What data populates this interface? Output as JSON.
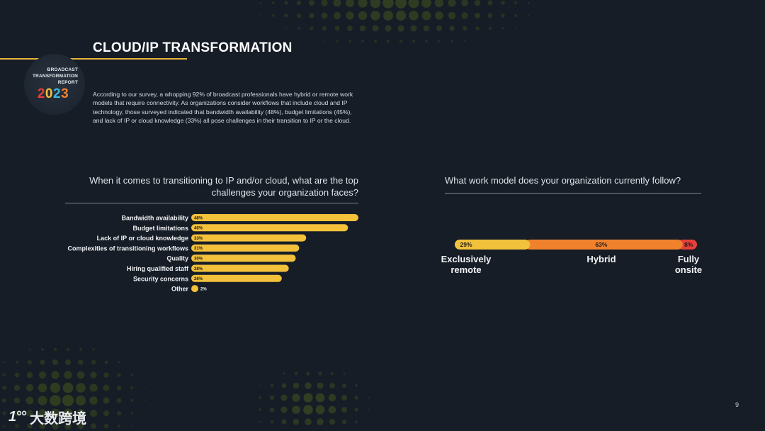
{
  "badge": {
    "line1": "BROADCAST",
    "line2": "TRANSFORMATION",
    "line3": "REPORT",
    "year": "2023"
  },
  "page": {
    "title": "CLOUD/IP TRANSFORMATION",
    "intro": "According to our survey, a whopping 92% of broadcast professionals have hybrid or remote work models that require connectivity. As organizations consider workflows that include cloud and IP technology, those surveyed indicated that bandwidth availability (48%), budget limitations (45%), and lack of IP or cloud knowledge (33%) all pose challenges in their transition to IP or the cloud.",
    "page_number": "9"
  },
  "logo": {
    "mark": "1°°",
    "text": "大数跨境"
  },
  "colors": {
    "bar": "#f3c13a",
    "remote": "#f2c23c",
    "hybrid": "#f0822e",
    "onsite": "#e6403a"
  },
  "chart_data": [
    {
      "type": "bar",
      "orientation": "horizontal",
      "title": "When it comes to transitioning to IP and/or cloud, what are the top challenges your organization faces?",
      "categories": [
        "Bandwidth availability",
        "Budget limitations",
        "Lack of IP or cloud knowledge",
        "Complexities of transitioning workflows",
        "Quality",
        "Hiring qualified staff",
        "Security concerns",
        "Other"
      ],
      "values": [
        48,
        45,
        33,
        31,
        30,
        28,
        26,
        2
      ],
      "value_labels": [
        "48%",
        "45%",
        "33%",
        "31%",
        "30%",
        "28%",
        "26%",
        "2%"
      ],
      "xlim": [
        0,
        48
      ],
      "grid": false
    },
    {
      "type": "bar",
      "orientation": "horizontal",
      "stacked": true,
      "title": "What work model does your organization currently follow?",
      "series": [
        {
          "name": "Exclusively remote",
          "value": 29,
          "label": "29%"
        },
        {
          "name": "Hybrid",
          "value": 63,
          "label": "63%"
        },
        {
          "name": "Fully onsite",
          "value": 8,
          "label": "8%"
        }
      ],
      "total": 100
    }
  ]
}
